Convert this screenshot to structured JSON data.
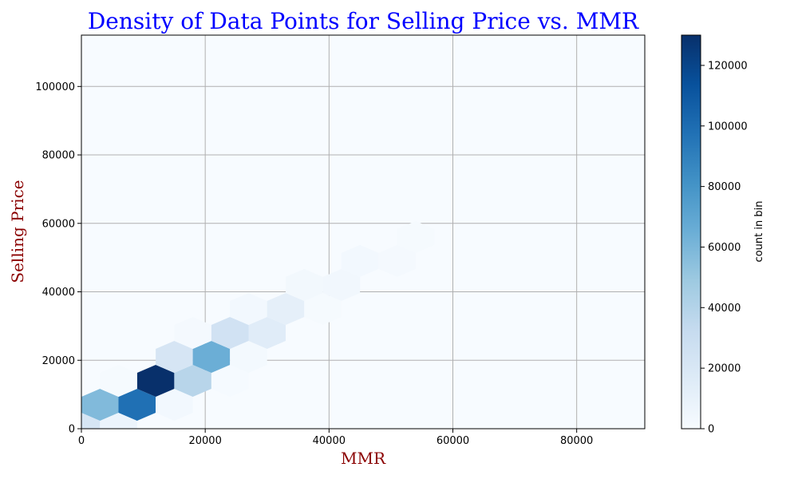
{
  "chart_data": {
    "type": "heatmap",
    "subtype": "hexbin",
    "title": "Density of Data Points for Selling Price vs. MMR",
    "xlabel": "MMR",
    "ylabel": "Selling Price",
    "colorbar_label": "count in bin",
    "xlim": [
      0,
      91000
    ],
    "ylim": [
      0,
      115000
    ],
    "clim": [
      0,
      130000
    ],
    "xticks": [
      0,
      20000,
      40000,
      60000,
      80000
    ],
    "yticks": [
      0,
      20000,
      40000,
      60000,
      80000,
      100000
    ],
    "colorbar_ticks": [
      0,
      20000,
      40000,
      60000,
      80000,
      100000,
      120000
    ],
    "grid": true,
    "colormap": "Blues",
    "colors": {
      "title": "#0000ff",
      "axis_label": "#8b0000",
      "grid": "#b0b0b0",
      "background": "#f7fbff"
    },
    "bins": [
      {
        "x": 0,
        "y": 0,
        "count": 22000
      },
      {
        "x": 6000,
        "y": 0,
        "count": 7000
      },
      {
        "x": 3000,
        "y": 7000,
        "count": 58000
      },
      {
        "x": 9000,
        "y": 7000,
        "count": 98000
      },
      {
        "x": 15000,
        "y": 7000,
        "count": 3000
      },
      {
        "x": 12000,
        "y": 14000,
        "count": 130000
      },
      {
        "x": 18000,
        "y": 14000,
        "count": 38000
      },
      {
        "x": 6000,
        "y": 14000,
        "count": 1500
      },
      {
        "x": 24000,
        "y": 14000,
        "count": 1000
      },
      {
        "x": 15000,
        "y": 21000,
        "count": 22000
      },
      {
        "x": 21000,
        "y": 21000,
        "count": 65000
      },
      {
        "x": 27000,
        "y": 21000,
        "count": 2500
      },
      {
        "x": 18000,
        "y": 28000,
        "count": 2000
      },
      {
        "x": 24000,
        "y": 28000,
        "count": 25000
      },
      {
        "x": 30000,
        "y": 28000,
        "count": 15000
      },
      {
        "x": 27000,
        "y": 35000,
        "count": 3000
      },
      {
        "x": 33000,
        "y": 35000,
        "count": 12000
      },
      {
        "x": 39000,
        "y": 35000,
        "count": 1500
      },
      {
        "x": 36000,
        "y": 42000,
        "count": 3500
      },
      {
        "x": 42000,
        "y": 42000,
        "count": 4000
      },
      {
        "x": 45000,
        "y": 49000,
        "count": 3000
      },
      {
        "x": 51000,
        "y": 49000,
        "count": 2000
      },
      {
        "x": 54000,
        "y": 56000,
        "count": 1500
      }
    ]
  }
}
